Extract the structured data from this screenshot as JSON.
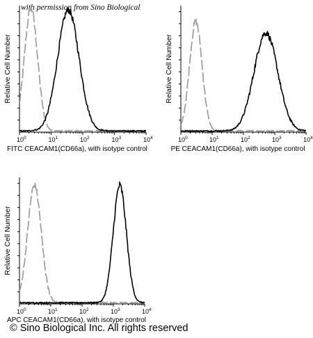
{
  "watermark": "with permission from Sino Biological",
  "copyright": "© Sino Biological Inc. All rights reserved",
  "colors": {
    "sample": "#000000",
    "isotype": "#a0a0a0"
  },
  "chart_data": [
    {
      "type": "line",
      "title": "",
      "xlabel": "FITC CEACAM1(CD66a),  with isotype control",
      "ylabel": "Relative Cell Number",
      "x_scale": "log",
      "xlim": [
        1,
        10000
      ],
      "x_ticks": [
        "10^0",
        "10^1",
        "10^2",
        "10^3",
        "10^4"
      ],
      "ylim": [
        0,
        1
      ],
      "series": [
        {
          "color": "#a0a0a0",
          "dashed": true,
          "peak_x": 2.3,
          "peak_height": 0.97,
          "width_decades": 0.21
        },
        {
          "color": "#000000",
          "dashed": false,
          "peak_x": 35,
          "peak_height": 0.96,
          "width_decades": 0.34
        }
      ]
    },
    {
      "type": "line",
      "title": "",
      "xlabel": "PE CEACAM1(CD66a),  with isotype control",
      "ylabel": "Relative Cell Number",
      "x_scale": "log",
      "xlim": [
        1,
        10000
      ],
      "x_ticks": [
        "10^0",
        "10^1",
        "10^2",
        "10^3",
        "10^4"
      ],
      "ylim": [
        0,
        1
      ],
      "series": [
        {
          "color": "#a0a0a0",
          "dashed": true,
          "peak_x": 3.0,
          "peak_height": 0.87,
          "width_decades": 0.2
        },
        {
          "color": "#000000",
          "dashed": false,
          "peak_x": 520,
          "peak_height": 0.78,
          "width_decades": 0.38
        }
      ]
    },
    {
      "type": "line",
      "title": "",
      "xlabel": "APC CEACAM1(CD66a),  with isotype control",
      "ylabel": "Relative Cell Number",
      "x_scale": "log",
      "xlim": [
        1,
        10000
      ],
      "x_ticks": [
        "10^0",
        "10^1",
        "10^2",
        "10^3",
        "10^4"
      ],
      "ylim": [
        0,
        1
      ],
      "series": [
        {
          "color": "#a0a0a0",
          "dashed": true,
          "peak_x": 3.0,
          "peak_height": 0.93,
          "width_decades": 0.22
        },
        {
          "color": "#000000",
          "dashed": false,
          "peak_x": 1600,
          "peak_height": 0.93,
          "width_decades": 0.21
        }
      ]
    }
  ]
}
